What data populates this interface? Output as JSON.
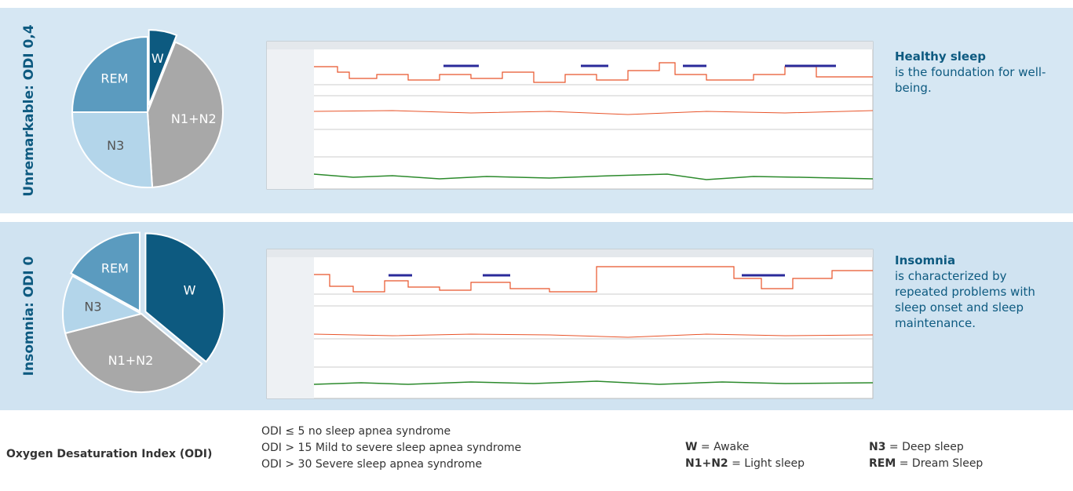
{
  "chart_data": [
    {
      "type": "pie",
      "title": "Unremarkable: ODI 0,4",
      "categories": [
        "W",
        "N1+N2",
        "N3",
        "REM"
      ],
      "values": [
        6,
        43,
        26,
        25
      ],
      "colors": [
        "#0d5a80",
        "#a8a8a8",
        "#b3d5ea",
        "#5b9bbf"
      ]
    },
    {
      "type": "pie",
      "title": "Insomnia: ODI 0",
      "categories": [
        "W",
        "N1+N2",
        "N3",
        "REM"
      ],
      "values": [
        36,
        35,
        12,
        17
      ],
      "colors": [
        "#0d5a80",
        "#a8a8a8",
        "#b3d5ea",
        "#5b9bbf"
      ]
    }
  ],
  "panels": [
    {
      "heading": "Healthy sleep",
      "text": "is the foundation for well-being."
    },
    {
      "heading": "Insomnia",
      "text": "is characterized by repeated problems with sleep onset and sleep maintenance."
    }
  ],
  "footer": {
    "odi_title": "Oxygen Desaturation Index (ODI)",
    "odi_lines": [
      "ODI ≤ 5 no sleep apnea syndrome",
      "ODI > 15 Mild to severe sleep apnea syndrome",
      "ODI > 30 Severe sleep apnea syndrome"
    ],
    "legend": [
      {
        "key": "W",
        "desc": "= Awake"
      },
      {
        "key": "N1+N2",
        "desc": "= Light sleep"
      },
      {
        "key": "N3",
        "desc": "= Deep sleep"
      },
      {
        "key": "REM",
        "desc": "= Dream Sleep"
      }
    ]
  }
}
